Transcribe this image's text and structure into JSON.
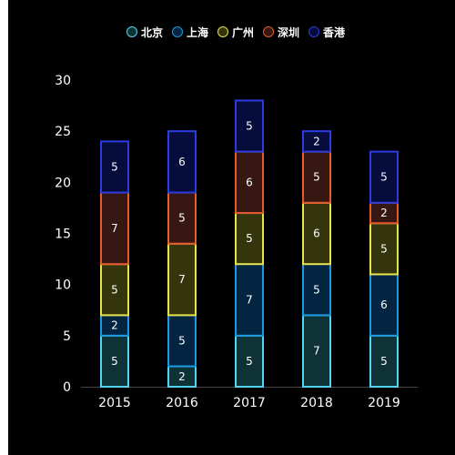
{
  "chart_data": {
    "type": "bar",
    "stacked": true,
    "categories": [
      "2015",
      "2016",
      "2017",
      "2018",
      "2019"
    ],
    "series": [
      {
        "name": "北京",
        "values": [
          5,
          2,
          5,
          7,
          5
        ],
        "fill": "#0e3236",
        "stroke": "#56d4f5"
      },
      {
        "name": "上海",
        "values": [
          2,
          5,
          7,
          5,
          6
        ],
        "fill": "#032541",
        "stroke": "#1c9ae0"
      },
      {
        "name": "广州",
        "values": [
          5,
          7,
          5,
          6,
          5
        ],
        "fill": "#35350d",
        "stroke": "#e8e34a"
      },
      {
        "name": "深圳",
        "values": [
          7,
          5,
          6,
          5,
          2
        ],
        "fill": "#361711",
        "stroke": "#e85a30"
      },
      {
        "name": "香港",
        "values": [
          5,
          6,
          5,
          2,
          5
        ],
        "fill": "#060c3c",
        "stroke": "#2c3ce0"
      }
    ],
    "ylim": [
      0,
      30
    ],
    "yticks": [
      0,
      5,
      10,
      15,
      20,
      25,
      30
    ],
    "grid": false,
    "legend": "top-center",
    "background": "#000000",
    "text_color": "#ffffff",
    "axis_color": "#444444",
    "title": "",
    "xlabel": "",
    "ylabel": ""
  }
}
